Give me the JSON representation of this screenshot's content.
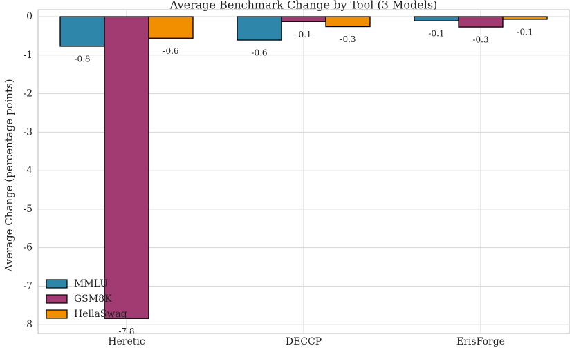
{
  "chart_data": {
    "type": "bar",
    "title": "Average Benchmark Change by Tool (3 Models)",
    "ylabel": "Average Change (percentage points)",
    "categories": [
      "Heretic",
      "DECCP",
      "ErisForge"
    ],
    "series": [
      {
        "name": "MMLU",
        "color": "#2e86ab",
        "values": [
          -0.77,
          -0.61,
          -0.11
        ],
        "value_labels": [
          "-0.8",
          "-0.6",
          "-0.1"
        ]
      },
      {
        "name": "GSM8K",
        "color": "#a23b72",
        "values": [
          -7.84,
          -0.13,
          -0.27
        ],
        "value_labels": [
          "-7.8",
          "-0.1",
          "-0.3"
        ]
      },
      {
        "name": "HellaSwag",
        "color": "#f18f01",
        "values": [
          -0.56,
          -0.26,
          -0.07
        ],
        "value_labels": [
          "-0.6",
          "-0.3",
          "-0.1"
        ]
      }
    ],
    "ylim": [
      -8.23,
      0.18
    ],
    "yticks": [
      0,
      -1,
      -2,
      -3,
      -4,
      -5,
      -6,
      -7,
      -8
    ],
    "grid": true,
    "legend": "lower left"
  }
}
